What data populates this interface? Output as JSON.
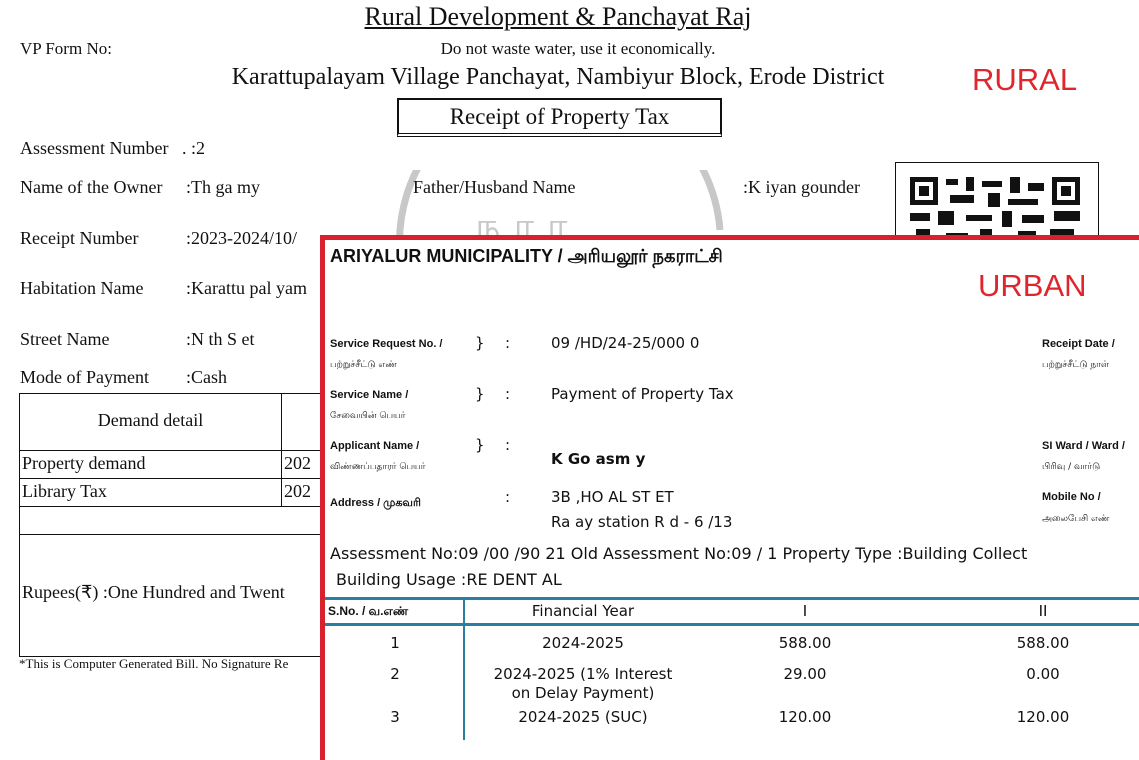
{
  "rural": {
    "title": "Rural Development & Panchayat Raj",
    "vp_form_label": "VP Form No:",
    "slogan": "Do not waste water, use it economically.",
    "panchayat": "Karattupalayam Village Panchayat, Nambiyur Block, Erode District",
    "tag": "RURAL",
    "receipt_title": "Receipt of Property Tax",
    "fields": [
      {
        "label": "Assessment Number",
        "value": ". :2"
      },
      {
        "label": "Name of the Owner",
        "value": ":Th  ga  my"
      },
      {
        "label": "Receipt Number",
        "value": ":2023-2024/10/"
      },
      {
        "label": "Habitation Name",
        "value": ":Karattu pal  yam"
      },
      {
        "label": "Street Name",
        "value": ":N  th S   et"
      },
      {
        "label": "Mode of Payment",
        "value": ":Cash"
      }
    ],
    "father_label": "Father/Husband Name",
    "father_value": ":K  iyan  gounder",
    "demand_table": {
      "header": "Demand detail",
      "rows": [
        {
          "item": "Property demand",
          "year": "202"
        },
        {
          "item": "Library Tax",
          "year": "202"
        }
      ],
      "rupees": "Rupees(₹) :One Hundred and Twent"
    },
    "footnote": "*This is Computer Generated Bill. No Signature Re"
  },
  "urban": {
    "title": "ARIYALUR MUNICIPALITY / அரியலூர் நகராட்சி",
    "tag": "URBAN",
    "fields": [
      {
        "label": "Service Request No. /",
        "label_ta": "பற்றுச்சீட்டு எண்",
        "value": "09  /HD/24-25/000   0"
      },
      {
        "label": "Service Name /",
        "label_ta": "சேவையின் பெயர்",
        "value": "Payment of Property Tax"
      },
      {
        "label": "Applicant Name /",
        "label_ta": "விண்ணப்பதாரர் பெயர்",
        "value": "K  Go   asm  y"
      },
      {
        "label": "Address / முகவரி",
        "label_ta": "",
        "value": "  3B  ,HO    AL ST   ET",
        "value2": "Ra   ay station R  d - 6   /13"
      }
    ],
    "right_fields": [
      {
        "label": "Receipt Date /",
        "label_ta": "பற்றுச்சீட்டு நாள்"
      },
      {
        "label": "SI Ward / Ward /",
        "label_ta": "பிரிவு / வார்டு"
      },
      {
        "label": "Mobile No /",
        "label_ta": "அலைபேசி எண்"
      }
    ],
    "assessment_line": "Assessment No:09 /00  /90   21 Old Assessment No:09  /  1 Property Type :Building    Collect",
    "usage_line": "Building Usage :RE   DENT  AL",
    "table": {
      "headers": [
        "S.No. / வ.எண்",
        "Financial Year",
        "I",
        "II"
      ],
      "rows": [
        {
          "sno": "1",
          "year": "2024-2025",
          "year2": "",
          "i": "588.00",
          "ii": "588.00"
        },
        {
          "sno": "2",
          "year": "2024-2025 (1% Interest",
          "year2": "on Delay Payment)",
          "i": "29.00",
          "ii": "0.00"
        },
        {
          "sno": "3",
          "year": "2024-2025 (SUC)",
          "year2": "",
          "i": "120.00",
          "ii": "120.00"
        }
      ]
    }
  },
  "colors": {
    "tag": "#e0262d",
    "urban_border": "#d9202f",
    "table_rule": "#2a7fa0"
  }
}
